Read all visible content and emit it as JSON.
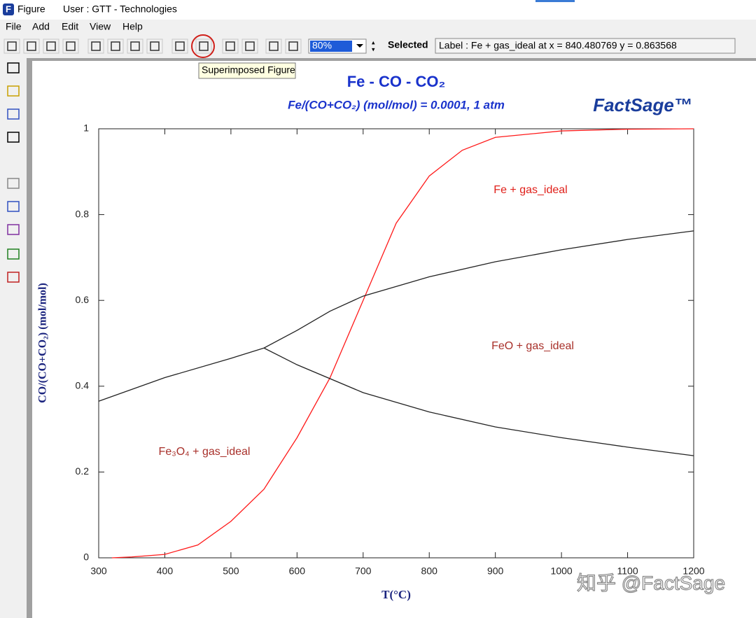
{
  "window": {
    "title": "Figure",
    "user": "User : GTT - Technologies"
  },
  "menu": [
    "File",
    "Add",
    "Edit",
    "View",
    "Help"
  ],
  "toolbar": {
    "zoom": "80%",
    "selected": "Selected",
    "label": "Label : Fe + gas_ideal at x = 840.480769 y = 0.863568",
    "tooltip": "Superimposed Figure"
  },
  "chart_data": {
    "type": "line",
    "title": "Fe - CO - CO₂",
    "subtitle": "Fe/(CO+CO₂) (mol/mol) = 0.0001, 1 atm",
    "logo": "FactSage™",
    "x_label": "T(°C)",
    "y_label": "CO/(CO+CO₂) (mol/mol)",
    "xlim": [
      300,
      1200
    ],
    "ylim": [
      0,
      1
    ],
    "xticks": [
      300,
      400,
      500,
      600,
      700,
      800,
      900,
      1000,
      1100,
      1200
    ],
    "yticks": [
      0,
      0.2,
      0.4,
      0.6,
      0.8,
      1
    ],
    "series": [
      {
        "color": "#ff1a1a",
        "x": [
          320,
          350,
          400,
          450,
          500,
          550,
          600,
          650,
          700,
          750,
          800,
          850,
          900,
          1000,
          1100,
          1200
        ],
        "values": [
          0,
          0.002,
          0.008,
          0.03,
          0.085,
          0.16,
          0.28,
          0.42,
          0.6,
          0.78,
          0.89,
          0.95,
          0.98,
          0.995,
          0.999,
          1.0
        ]
      },
      {
        "color": "#222222",
        "x": [
          300,
          400,
          500,
          550
        ],
        "values": [
          0.365,
          0.42,
          0.465,
          0.489
        ]
      },
      {
        "color": "#222222",
        "x": [
          550,
          600,
          650,
          700,
          800,
          900,
          1000,
          1100,
          1200
        ],
        "values": [
          0.489,
          0.53,
          0.575,
          0.61,
          0.655,
          0.69,
          0.718,
          0.742,
          0.762
        ]
      },
      {
        "color": "#222222",
        "x": [
          550,
          600,
          700,
          800,
          900,
          1000,
          1100,
          1200
        ],
        "values": [
          0.489,
          0.45,
          0.385,
          0.34,
          0.305,
          0.28,
          0.258,
          0.238
        ]
      }
    ],
    "annotations": [
      {
        "text": "Fe + gas_ideal",
        "color": "#e0201a"
      },
      {
        "text": "FeO + gas_ideal",
        "color": "#a8302a"
      },
      {
        "text": "Fe₃O₄ + gas_ideal",
        "color": "#a8302a"
      }
    ]
  },
  "watermark": "知乎 @FactSage"
}
